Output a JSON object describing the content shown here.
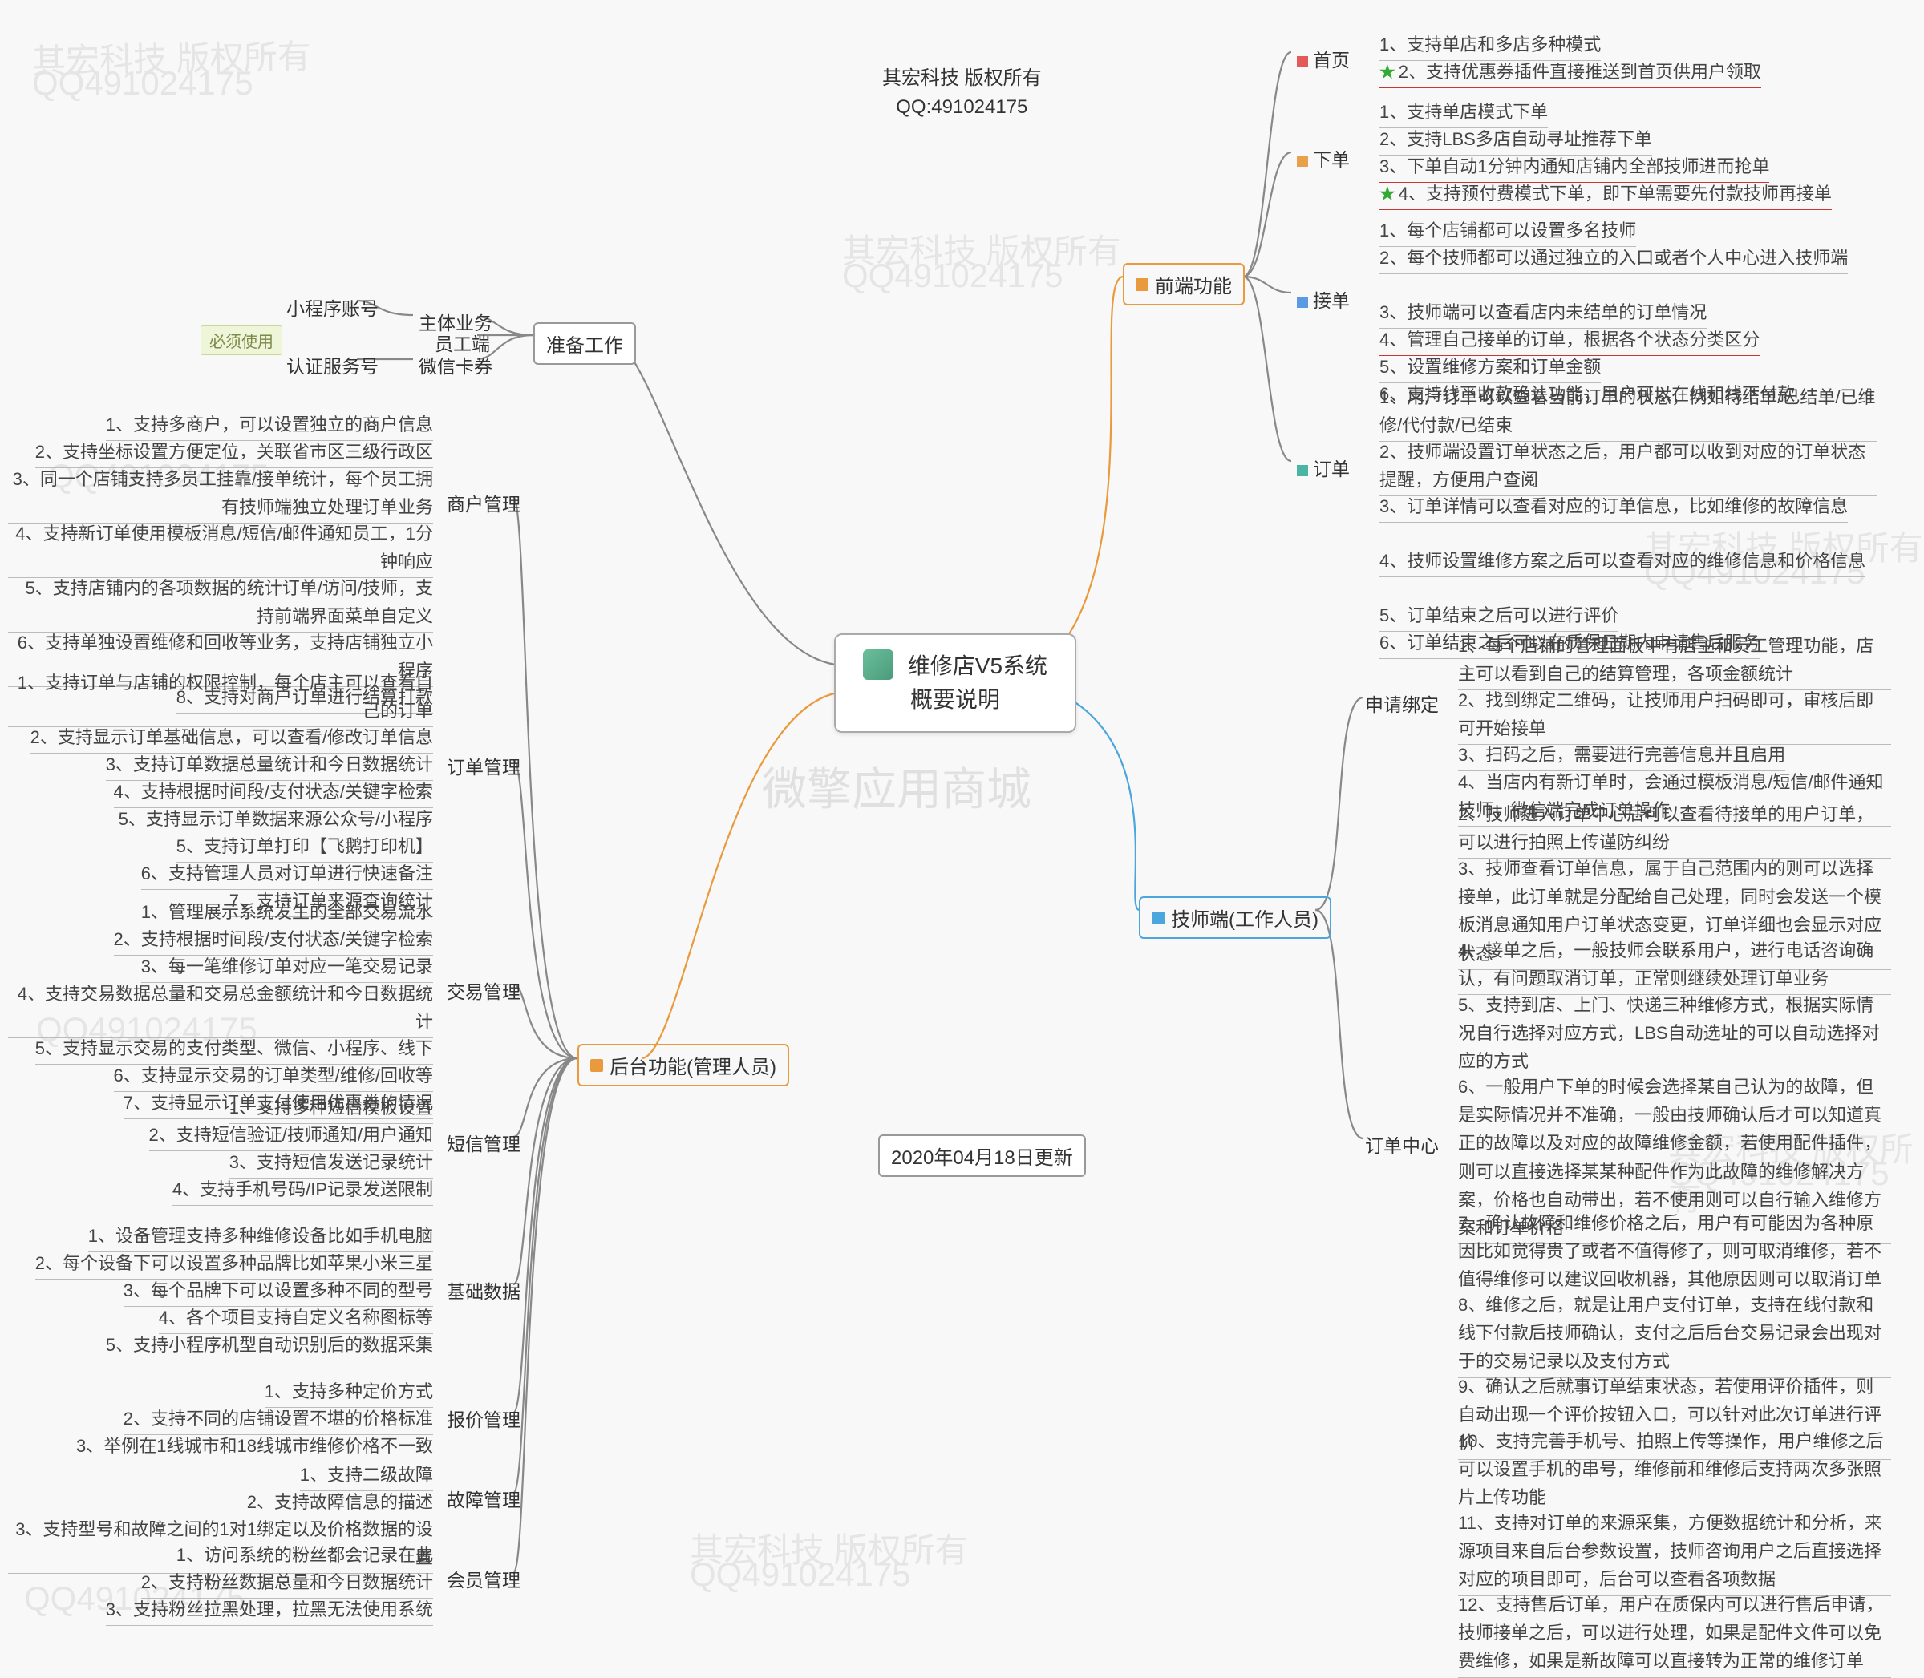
{
  "header": {
    "line1": "其宏科技 版权所有",
    "line2": "QQ:491024175"
  },
  "big_watermark": "微擎应用商城",
  "footer": "2020年04月18日更新",
  "center": {
    "title": "维修店V5系统",
    "subtitle": "概要说明"
  },
  "prep": {
    "label": "准备工作",
    "must": "必须使用",
    "items": [
      "主体业务",
      "员工端",
      "微信卡券"
    ],
    "sub1": "小程序账号",
    "sub2": "认证服务号"
  },
  "backend": {
    "label": "后台功能(管理人员)",
    "merchant": {
      "label": "商户管理",
      "items": [
        "1、支持多商户，可以设置独立的商户信息",
        "2、支持坐标设置方便定位，关联省市区三级行政区",
        "3、同一个店铺支持多员工挂靠/接单统计，每个员工拥有技师端独立处理订单业务",
        "4、支持新订单使用模板消息/短信/邮件通知员工，1分钟响应",
        "5、支持店铺内的各项数据的统计订单/访问/技师，支持前端界面菜单自定义",
        "6、支持单独设置维修和回收等业务，支持店铺独立小程序",
        "8、支持对商户订单进行结算打款"
      ]
    },
    "order": {
      "label": "订单管理",
      "items": [
        "1、支持订单与店铺的权限控制，每个店主可以查看自己的订单",
        "2、支持显示订单基础信息，可以查看/修改订单信息",
        "3、支持订单数据总量统计和今日数据统计",
        "4、支持根据时间段/支付状态/关键字检索",
        "5、支持显示订单数据来源公众号/小程序",
        "5、支持订单打印【飞鹅打印机】",
        "6、支持管理人员对订单进行快速备注",
        "7、支持订单来源查询统计"
      ]
    },
    "trade": {
      "label": "交易管理",
      "items": [
        "1、管理展示系统发生的全部交易流水",
        "2、支持根据时间段/支付状态/关键字检索",
        "3、每一笔维修订单对应一笔交易记录",
        "4、支持交易数据总量和交易总金额统计和今日数据统计",
        "5、支持显示交易的支付类型、微信、小程序、线下",
        "6、支持显示交易的订单类型/维修/回收等",
        "7、支持显示订单支付使用优惠券的情况"
      ]
    },
    "sms": {
      "label": "短信管理",
      "items": [
        "1、支持多种短信模板设置",
        "2、支持短信验证/技师通知/用户通知",
        "3、支持短信发送记录统计",
        "4、支持手机号码/IP记录发送限制"
      ]
    },
    "basedata": {
      "label": "基础数据",
      "items": [
        "1、设备管理支持多种维修设备比如手机电脑",
        "2、每个设备下可以设置多种品牌比如苹果小米三星",
        "3、每个品牌下可以设置多种不同的型号",
        "4、各个项目支持自定义名称图标等",
        "5、支持小程序机型自动识别后的数据采集"
      ]
    },
    "quote": {
      "label": "报价管理",
      "items": [
        "1、支持多种定价方式",
        "2、支持不同的店铺设置不堪的价格标准",
        "3、举例在1线城市和18线城市维修价格不一致"
      ]
    },
    "fault": {
      "label": "故障管理",
      "items": [
        "1、支持二级故障",
        "2、支持故障信息的描述",
        "3、支持型号和故障之间的1对1绑定以及价格数据的设置"
      ]
    },
    "member": {
      "label": "会员管理",
      "items": [
        "1、访问系统的粉丝都会记录在此",
        "2、支持粉丝数据总量和今日数据统计",
        "3、支持粉丝拉黑处理，拉黑无法使用系统"
      ]
    }
  },
  "frontend": {
    "label": "前端功能",
    "home": {
      "label": "首页",
      "mark": "red",
      "items": [
        {
          "t": "1、支持单店和多店多种模式"
        },
        {
          "t": "2、支持优惠券插件直接推送到首页供用户领取",
          "star": true,
          "red": true
        }
      ]
    },
    "place": {
      "label": "下单",
      "mark": "orange",
      "items": [
        {
          "t": "1、支持单店模式下单"
        },
        {
          "t": "2、支持LBS多店自动寻址推荐下单"
        },
        {
          "t": "3、下单自动1分钟内通知店铺内全部技师进而抢单",
          "red": true
        },
        {
          "t": "4、支持预付费模式下单，即下单需要先付款技师再接单",
          "star": true,
          "red": true
        }
      ]
    },
    "accept": {
      "label": "接单",
      "mark": "blue",
      "items": [
        {
          "t": "1、每个店铺都可以设置多名技师"
        },
        {
          "t": "2、每个技师都可以通过独立的入口或者个人中心进入技师端"
        },
        {
          "t": "3、技师端可以查看店内未结单的订单情况"
        },
        {
          "t": "4、管理自己接单的订单，根据各个状态分类区分",
          "red": true
        },
        {
          "t": "5、设置维修方案和订单金额"
        },
        {
          "t": "6、支持线下收款确认功能，用户可以在线和线下付款",
          "red": true
        }
      ]
    },
    "orders": {
      "label": "订单",
      "mark": "teal",
      "items": [
        {
          "t": "1、用户订单可以查看当前订单的状态，例如待结单/已结单/已维修/代付款/已结束"
        },
        {
          "t": "2、技师端设置订单状态之后，用户都可以收到对应的订单状态提醒，方便用户查阅"
        },
        {
          "t": "3、订单详情可以查看对应的订单信息，比如维修的故障信息"
        },
        {
          "t": "4、技师设置维修方案之后可以查看对应的维修信息和价格信息"
        },
        {
          "t": "5、订单结束之后可以进行评价"
        },
        {
          "t": "6、订单结束之后可以在质保日期内申请售后服务"
        }
      ]
    }
  },
  "tech": {
    "label": "技师端(工作人员)",
    "apply": {
      "label": "申请绑定",
      "items": [
        "1、每个店铺的管理面板中有店主和员工管理功能，店主可以看到自己的结算管理，各项金额统计",
        "2、找到绑定二维码，让技师用户扫码即可，审核后即可开始接单",
        "3、扫码之后，需要进行完善信息并且启用",
        "4、当店内有新订单时，会通过模板消息/短信/邮件通知技师，微信端完成订单操作"
      ]
    },
    "center": {
      "label": "订单中心",
      "items": [
        "2、技师进入订单中心后可以查看待接单的用户订单，可以进行拍照上传谨防纠纷",
        "3、技师查看订单信息，属于自己范围内的则可以选择接单，此订单就是分配给自己处理，同时会发送一个模板消息通知用户订单状态变更，订单详细也会显示对应状态",
        "4、接单之后，一般技师会联系用户，进行电话咨询确认，有问题取消订单，正常则继续处理订单业务",
        "5、支持到店、上门、快递三种维修方式，根据实际情况自行选择对应方式，LBS自动选址的可以自动选择对应的方式",
        "6、一般用户下单的时候会选择某自己认为的故障，但是实际情况并不准确，一般由技师确认后才可以知道真正的故障以及对应的故障维修金额，若使用配件插件，则可以直接选择某某种配件作为此故障的维修解决方案，价格也自动带出，若不使用则可以自行输入维修方案和订单价格",
        "7、确认故障和维修价格之后，用户有可能因为各种原因比如觉得贵了或者不值得修了，则可取消维修，若不值得维修可以建议回收机器，其他原因则可以取消订单",
        "8、维修之后，就是让用户支付订单，支持在线付款和线下付款后技师确认，支付之后后台交易记录会出现对于的交易记录以及支付方式",
        "9、确认之后就事订单结束状态，若使用评价插件，则自动出现一个评价按钮入口，可以针对此次订单进行评价",
        "10、支持完善手机号、拍照上传等操作，用户维修之后可以设置手机的串号，维修前和维修后支持两次多张照片上传功能",
        "11、支持对订单的来源采集，方便数据统计和分析，来源项目来自后台参数设置，技师咨询用户之后直接选择对应的项目即可，后台可以查看各项数据",
        "12、支持售后订单，用户在质保内可以进行售后申请，技师接单之后，可以进行处理，如果是配件文件可以免费维修，如果是新故障可以直接转为正常的维修订单"
      ]
    }
  },
  "colors": {
    "gray": "#888",
    "orange": "#e89a3c",
    "blue": "#4ba6dd",
    "green": "#6bbf6b",
    "teal": "#4ab5a5",
    "red": "#e35a5a"
  }
}
